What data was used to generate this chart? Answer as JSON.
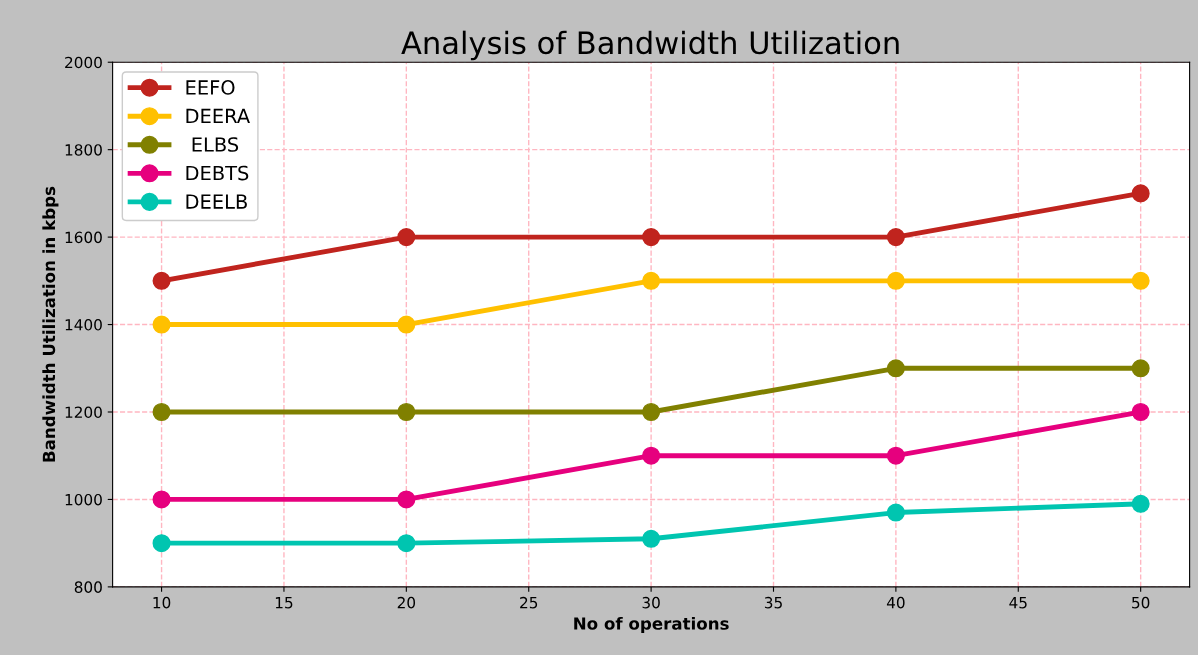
{
  "chart_data": {
    "type": "line",
    "title": "Analysis of Bandwidth Utilization",
    "xlabel": "No of operations",
    "ylabel": "Bandwidth Utilization in kbps",
    "x": [
      10,
      20,
      30,
      40,
      50
    ],
    "series": [
      {
        "name": "EEFO",
        "color": "#c0241e",
        "values": [
          1500,
          1600,
          1600,
          1600,
          1700
        ]
      },
      {
        "name": "DEERA",
        "color": "#ffc000",
        "values": [
          1400,
          1400,
          1500,
          1500,
          1500
        ]
      },
      {
        "name": " ELBS",
        "color": "#808000",
        "values": [
          1200,
          1200,
          1200,
          1300,
          1300
        ]
      },
      {
        "name": "DEBTS",
        "color": "#e6007e",
        "values": [
          1000,
          1000,
          1100,
          1100,
          1200
        ]
      },
      {
        "name": "DEELB",
        "color": "#00c5b0",
        "values": [
          900,
          900,
          910,
          970,
          990
        ]
      }
    ],
    "xlim": [
      8,
      52
    ],
    "xticks": [
      10,
      15,
      20,
      25,
      30,
      35,
      40,
      45,
      50
    ],
    "ylim": [
      800,
      2000
    ],
    "yticks": [
      800,
      1000,
      1200,
      1400,
      1600,
      1800,
      2000
    ],
    "grid": true,
    "legend": "top left",
    "marker": "circle",
    "line_style": "solid"
  }
}
